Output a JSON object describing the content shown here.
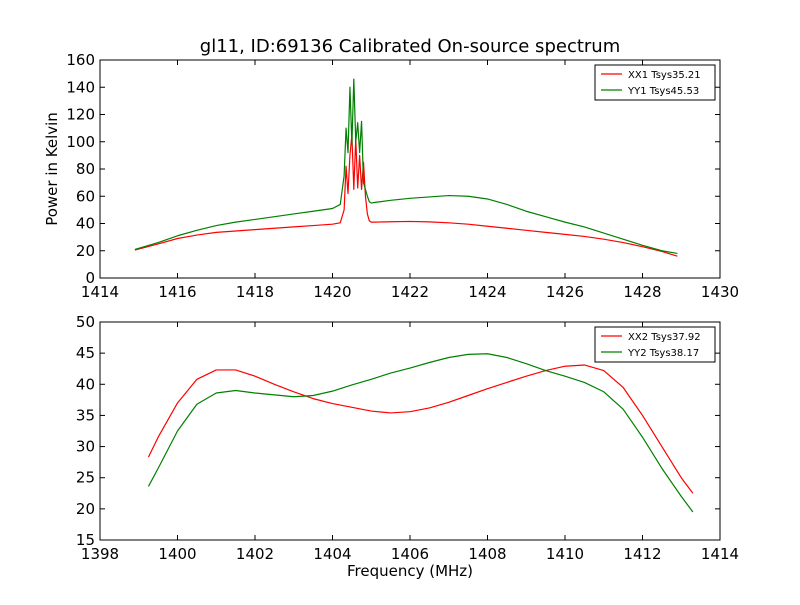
{
  "figure": {
    "title": "gl11, ID:69136 Calibrated On-source spectrum"
  },
  "colors": {
    "xx": "#ff0000",
    "yy": "#008000",
    "axes": "#000000",
    "background": "#ffffff"
  },
  "chart_data": [
    {
      "type": "line",
      "title": "gl11, ID:69136 Calibrated On-source spectrum",
      "xlabel": "",
      "ylabel": "Power in Kelvin",
      "xlim": [
        1414,
        1430
      ],
      "ylim": [
        0,
        160
      ],
      "xticks": [
        1414,
        1416,
        1418,
        1420,
        1422,
        1424,
        1426,
        1428,
        1430
      ],
      "yticks": [
        0,
        20,
        40,
        60,
        80,
        100,
        120,
        140,
        160
      ],
      "grid": false,
      "legend_position": "top-right",
      "series": [
        {
          "name": "XX1 Tsys35.21",
          "color": "#ff0000",
          "x": [
            1414.9,
            1415.5,
            1416.0,
            1416.5,
            1417.0,
            1417.5,
            1418.0,
            1418.5,
            1419.0,
            1419.5,
            1420.0,
            1420.2,
            1420.3,
            1420.35,
            1420.4,
            1420.45,
            1420.5,
            1420.55,
            1420.6,
            1420.65,
            1420.7,
            1420.75,
            1420.8,
            1420.85,
            1420.9,
            1420.95,
            1421.0,
            1421.1,
            1421.5,
            1422.0,
            1422.5,
            1423.0,
            1423.5,
            1424.0,
            1424.5,
            1425.0,
            1425.5,
            1426.0,
            1426.5,
            1427.0,
            1427.5,
            1428.0,
            1428.5,
            1428.9
          ],
          "y": [
            20.5,
            25,
            29,
            31.5,
            33.5,
            34.5,
            35.5,
            36.5,
            37.5,
            38.5,
            39.5,
            40.5,
            50,
            82,
            62,
            90,
            105,
            65,
            102,
            66,
            90,
            65,
            85,
            60,
            47,
            42,
            41,
            41,
            41.3,
            41.5,
            41.2,
            40.5,
            39.5,
            38,
            36.5,
            35,
            33.5,
            32,
            30.5,
            28.5,
            26,
            23,
            19.5,
            16
          ]
        },
        {
          "name": "YY1 Tsys45.53",
          "color": "#008000",
          "x": [
            1414.9,
            1415.5,
            1416.0,
            1416.5,
            1417.0,
            1417.5,
            1418.0,
            1418.5,
            1419.0,
            1419.5,
            1420.0,
            1420.2,
            1420.3,
            1420.35,
            1420.4,
            1420.45,
            1420.5,
            1420.55,
            1420.6,
            1420.65,
            1420.7,
            1420.75,
            1420.8,
            1420.85,
            1420.9,
            1420.95,
            1421.0,
            1421.1,
            1421.5,
            1422.0,
            1422.5,
            1423.0,
            1423.5,
            1424.0,
            1424.5,
            1425.0,
            1425.5,
            1426.0,
            1426.5,
            1427.0,
            1427.5,
            1428.0,
            1428.5,
            1428.9
          ],
          "y": [
            21,
            26,
            31,
            35,
            38.5,
            41,
            43,
            45,
            47,
            49,
            51,
            54,
            75,
            110,
            92,
            140,
            98,
            146,
            100,
            114,
            92,
            115,
            70,
            65,
            60,
            56,
            55,
            55.5,
            57,
            58.5,
            59.5,
            60.5,
            60,
            58,
            54,
            49,
            45,
            41,
            37.5,
            33,
            28.5,
            24,
            20,
            18
          ]
        }
      ]
    },
    {
      "type": "line",
      "title": "",
      "xlabel": "Frequency (MHz)",
      "ylabel": "",
      "xlim": [
        1398,
        1414
      ],
      "ylim": [
        15,
        50
      ],
      "xticks": [
        1398,
        1400,
        1402,
        1404,
        1406,
        1408,
        1410,
        1412,
        1414
      ],
      "yticks": [
        15,
        20,
        25,
        30,
        35,
        40,
        45,
        50
      ],
      "grid": false,
      "legend_position": "top-right",
      "series": [
        {
          "name": "XX2 Tsys37.92",
          "color": "#ff0000",
          "x": [
            1399.25,
            1399.5,
            1400.0,
            1400.5,
            1401.0,
            1401.5,
            1402.0,
            1402.5,
            1403.0,
            1403.5,
            1404.0,
            1404.5,
            1405.0,
            1405.5,
            1406.0,
            1406.5,
            1407.0,
            1407.5,
            1408.0,
            1408.5,
            1409.0,
            1409.5,
            1410.0,
            1410.5,
            1411.0,
            1411.5,
            1412.0,
            1412.5,
            1413.0,
            1413.3
          ],
          "y": [
            28.3,
            31.5,
            37,
            40.8,
            42.3,
            42.3,
            41.3,
            40,
            38.8,
            37.7,
            36.9,
            36.3,
            35.7,
            35.4,
            35.6,
            36.2,
            37.1,
            38.2,
            39.3,
            40.3,
            41.3,
            42.2,
            42.9,
            43.1,
            42.2,
            39.5,
            35,
            30,
            25,
            22.5
          ]
        },
        {
          "name": "YY2 Tsys38.17",
          "color": "#008000",
          "x": [
            1399.25,
            1399.5,
            1400.0,
            1400.5,
            1401.0,
            1401.5,
            1402.0,
            1402.5,
            1403.0,
            1403.5,
            1404.0,
            1404.5,
            1405.0,
            1405.5,
            1406.0,
            1406.5,
            1407.0,
            1407.5,
            1408.0,
            1408.5,
            1409.0,
            1409.5,
            1410.0,
            1410.5,
            1411.0,
            1411.5,
            1412.0,
            1412.5,
            1413.0,
            1413.3
          ],
          "y": [
            23.6,
            26.5,
            32.5,
            36.8,
            38.6,
            39,
            38.6,
            38.3,
            38,
            38.2,
            38.9,
            39.9,
            40.8,
            41.8,
            42.6,
            43.5,
            44.3,
            44.8,
            44.9,
            44.3,
            43.3,
            42.2,
            41.3,
            40.3,
            38.8,
            36,
            31.5,
            26.5,
            22,
            19.5
          ]
        }
      ]
    }
  ]
}
